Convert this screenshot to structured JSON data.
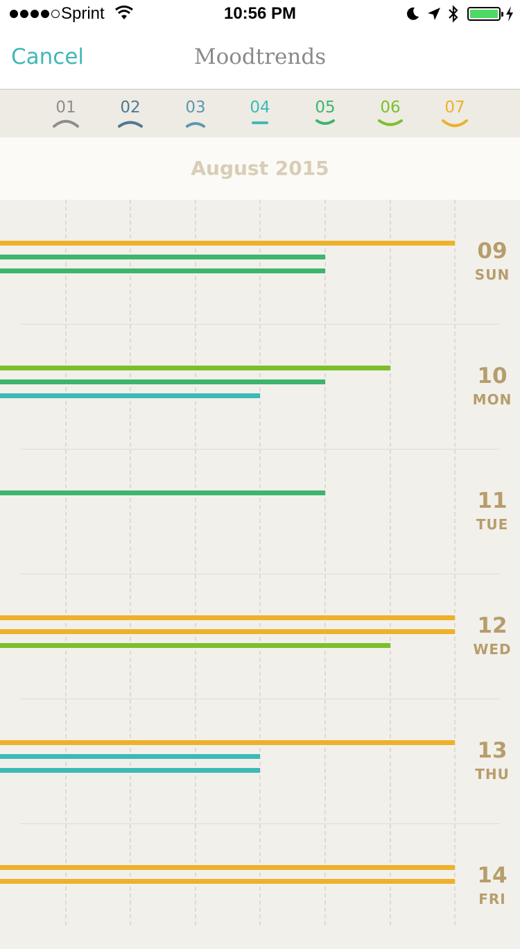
{
  "status_bar": {
    "carrier": "Sprint",
    "time": "10:56 PM",
    "signal_strength": 4,
    "battery_color": "#4cd964",
    "icons": [
      "wifi-icon",
      "moon-icon",
      "location-icon",
      "bluetooth-icon",
      "battery-icon",
      "charge-icon"
    ]
  },
  "nav": {
    "cancel_label": "Cancel",
    "title": "Moodtrends"
  },
  "accent_color": "#40b8b6",
  "mood_scale": [
    {
      "label": "01",
      "color": "#8d8d8d",
      "face": "frown"
    },
    {
      "label": "02",
      "color": "#4f7891",
      "face": "frown"
    },
    {
      "label": "03",
      "color": "#5b97b0",
      "face": "frown"
    },
    {
      "label": "04",
      "color": "#3dbab8",
      "face": "neutral"
    },
    {
      "label": "05",
      "color": "#3db56d",
      "face": "smile"
    },
    {
      "label": "06",
      "color": "#7cbf2d",
      "face": "smile"
    },
    {
      "label": "07",
      "color": "#edb12a",
      "face": "smile"
    }
  ],
  "month": "August 2015",
  "days": [
    {
      "num": "09",
      "name": "SUN",
      "moods": [
        7,
        5,
        5
      ]
    },
    {
      "num": "10",
      "name": "MON",
      "moods": [
        6,
        5,
        4
      ]
    },
    {
      "num": "11",
      "name": "TUE",
      "moods": [
        5
      ]
    },
    {
      "num": "12",
      "name": "WED",
      "moods": [
        7,
        7,
        6
      ]
    },
    {
      "num": "13",
      "name": "THU",
      "moods": [
        7,
        4,
        4
      ]
    },
    {
      "num": "14",
      "name": "FRI",
      "moods": [
        7,
        7
      ]
    }
  ]
}
